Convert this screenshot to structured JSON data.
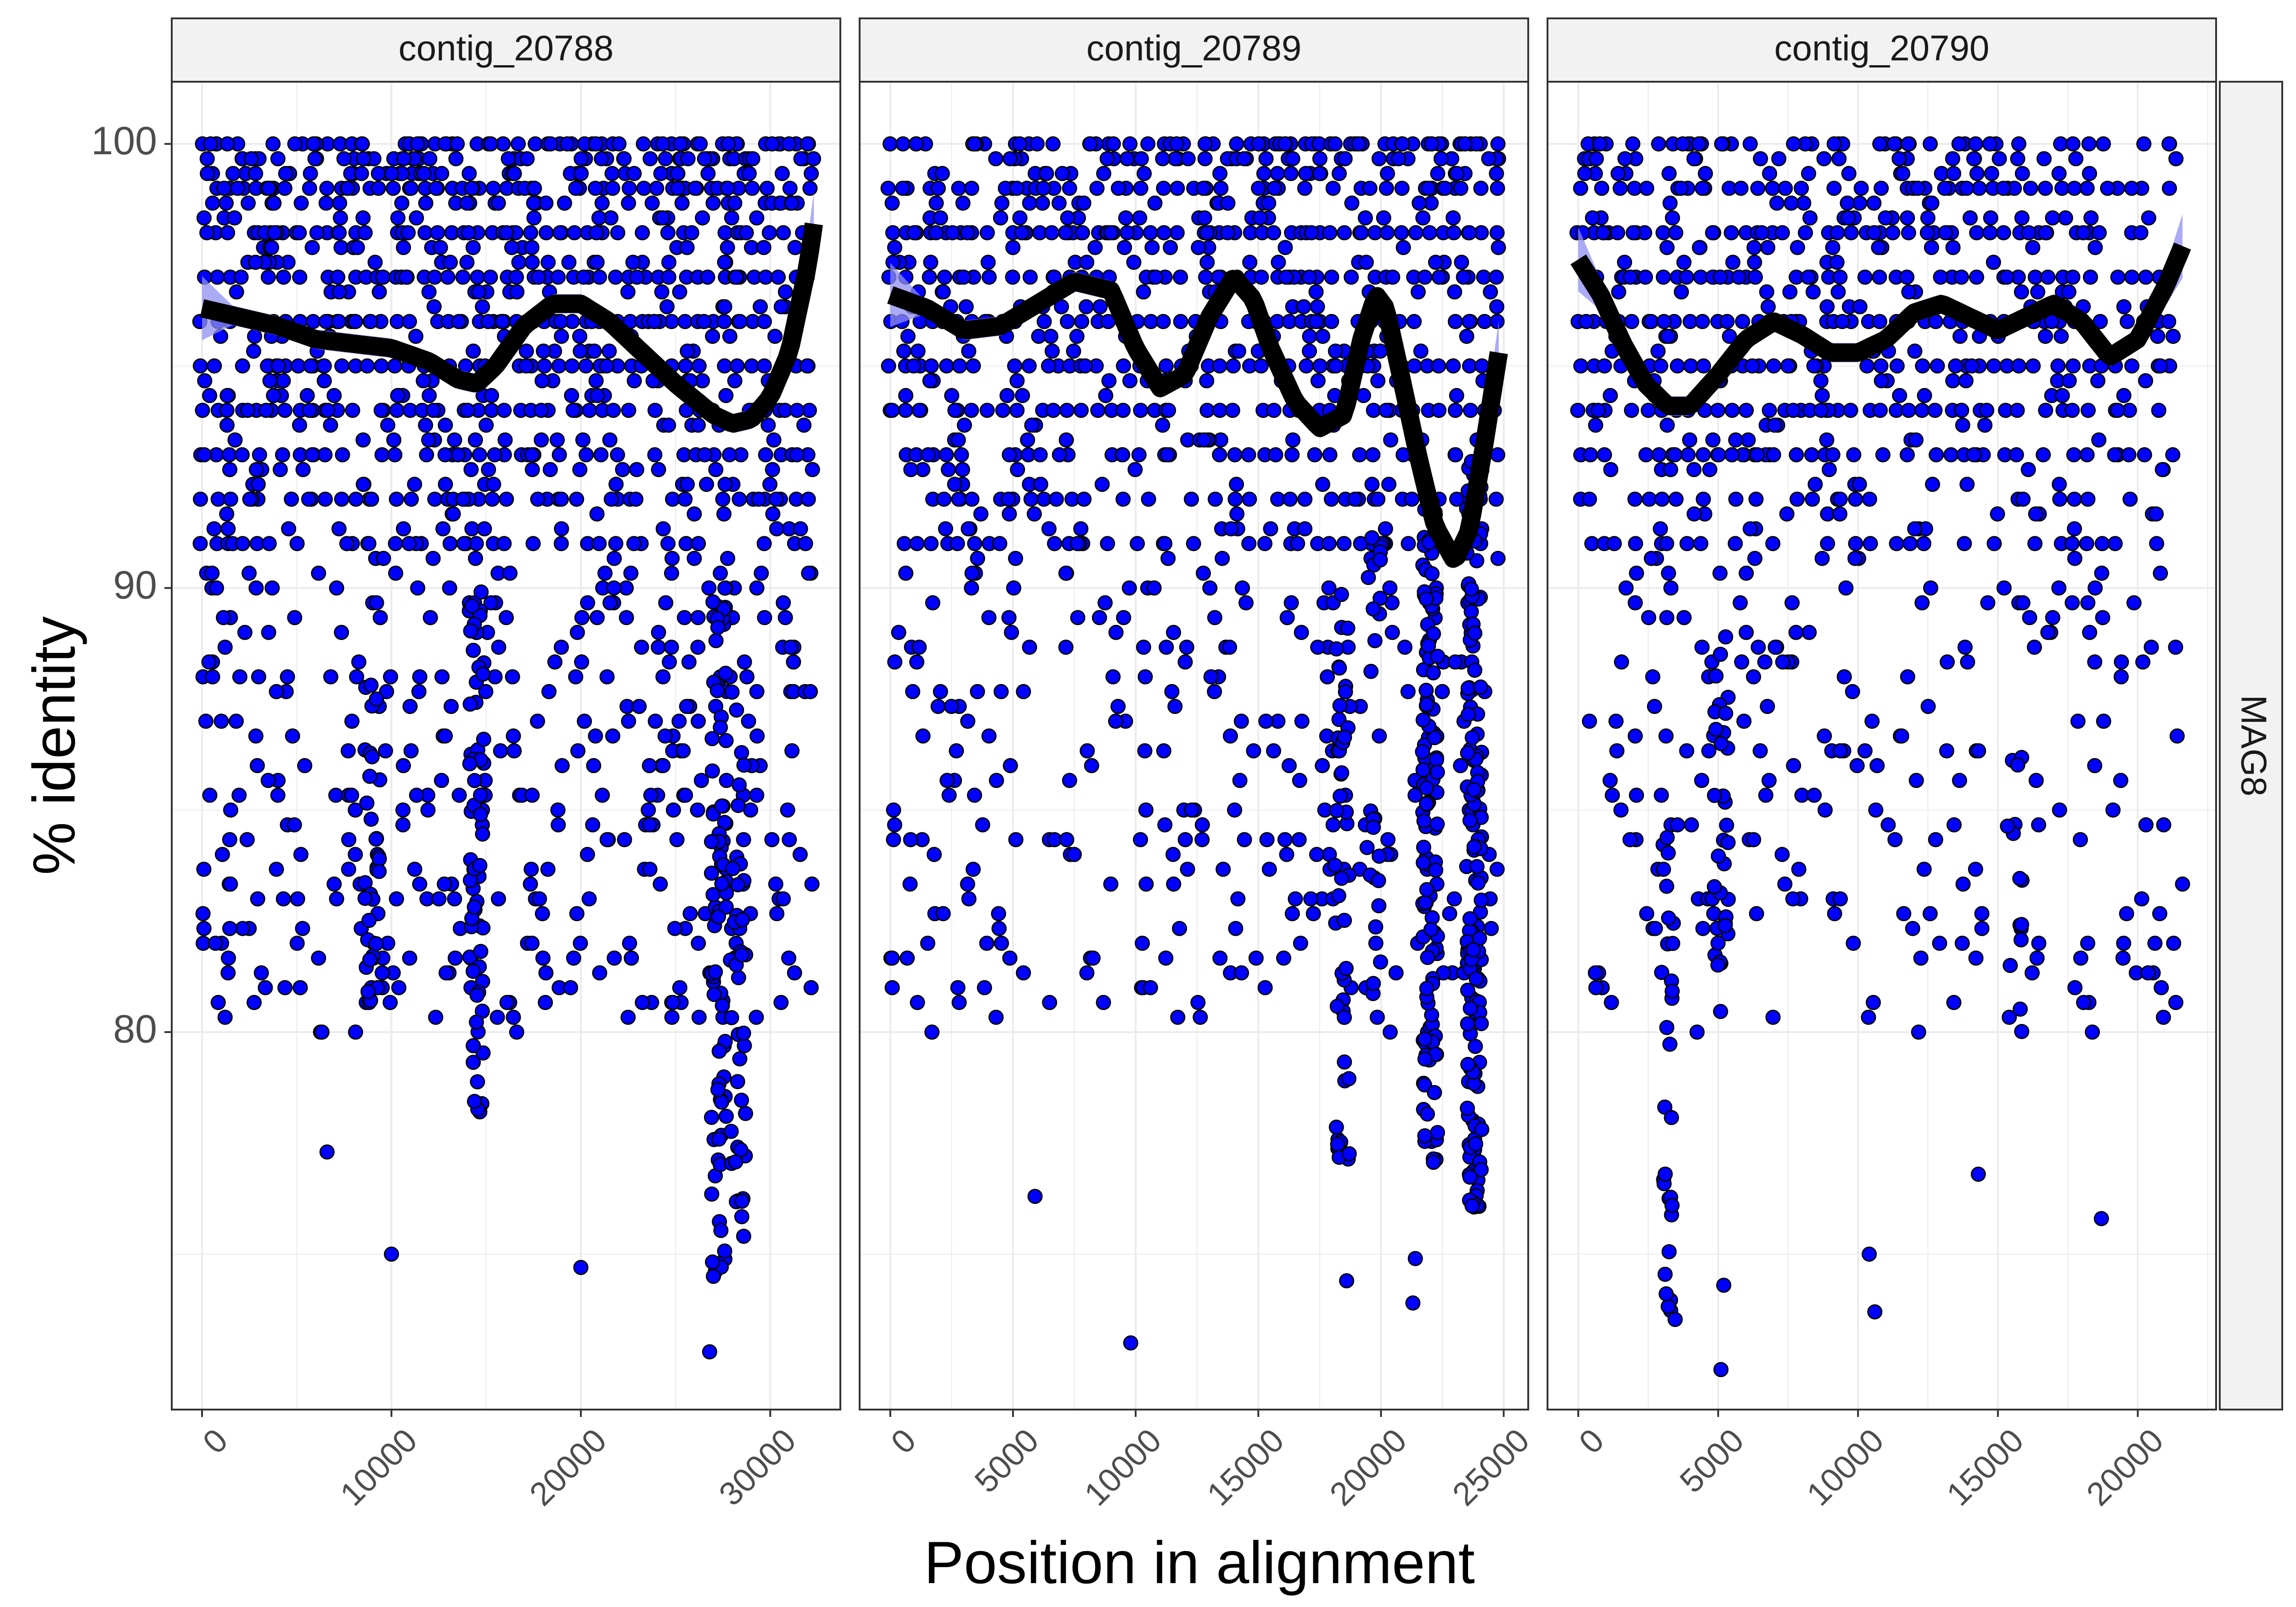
{
  "chart_data": {
    "type": "scatter",
    "xlabel": "Position in alignment",
    "ylabel": "% identity",
    "row_strip": "MAG8",
    "ylim": [
      71.5,
      101.4
    ],
    "yticks": [
      80,
      90,
      100
    ],
    "grid": true,
    "colors": {
      "points": "#0000ff",
      "point_outline": "#000000",
      "smooth": "#000000",
      "ribbon": "#8f8ff2",
      "strip_bg": "#f2f2f2",
      "grid": "#ebebeb"
    },
    "panels": [
      {
        "name": "contig_20788",
        "xlim": [
          -1600,
          33700
        ],
        "xticks": [
          0,
          10000,
          20000,
          30000
        ],
        "x_max": 32300,
        "smooth": {
          "x": [
            0,
            2000,
            4000,
            6000,
            8000,
            10000,
            12000,
            13500,
            14500,
            15500,
            17000,
            18500,
            20000,
            21500,
            23000,
            25000,
            27000,
            28000,
            29000,
            30000,
            31000,
            32000,
            32300
          ],
          "y": [
            96.3,
            96.1,
            95.9,
            95.6,
            95.5,
            95.4,
            95.1,
            94.7,
            94.6,
            95.0,
            95.9,
            96.4,
            96.4,
            96.0,
            95.4,
            94.6,
            93.9,
            93.7,
            93.8,
            94.3,
            95.3,
            97.3,
            98.2
          ]
        },
        "dense_levels": [
          {
            "y": 100,
            "p": 0.55
          },
          {
            "y": 99,
            "p": 0.7
          },
          {
            "y": 98,
            "p": 0.75
          },
          {
            "y": 97,
            "p": 0.85
          },
          {
            "y": 96,
            "p": 0.85
          },
          {
            "y": 95,
            "p": 0.85
          },
          {
            "y": 94,
            "p": 0.8
          },
          {
            "y": 93,
            "p": 0.7
          },
          {
            "y": 92,
            "p": 0.55
          },
          {
            "y": 91,
            "p": 0.45
          }
        ],
        "scatter_count": 900,
        "clusters": [
          {
            "x": 14500,
            "ymin": 78,
            "ymax": 90,
            "n": 60
          },
          {
            "x": 27300,
            "ymin": 74.5,
            "ymax": 90,
            "n": 80
          },
          {
            "x": 28300,
            "ymin": 75,
            "ymax": 88,
            "n": 40
          },
          {
            "x": 9000,
            "ymin": 79,
            "ymax": 88,
            "n": 30
          }
        ],
        "outliers": [
          [
            26800,
            72.8
          ],
          [
            10000,
            75
          ],
          [
            20000,
            74.7
          ],
          [
            27000,
            74.5
          ],
          [
            6600,
            77.3
          ]
        ]
      },
      {
        "name": "contig_20789",
        "xlim": [
          -1250,
          26000
        ],
        "xticks": [
          0,
          5000,
          10000,
          15000,
          20000,
          25000
        ],
        "x_max": 24800,
        "smooth": {
          "x": [
            0,
            1500,
            3000,
            4500,
            6000,
            7500,
            9000,
            10000,
            11000,
            12000,
            13000,
            14000,
            14800,
            15500,
            16500,
            17500,
            18500,
            19200,
            19800,
            20200,
            20800,
            21500,
            22200,
            23000,
            23600,
            24200,
            24800
          ],
          "y": [
            96.6,
            96.3,
            95.8,
            95.9,
            96.4,
            96.9,
            96.7,
            95.4,
            94.5,
            94.8,
            96.1,
            97.0,
            96.5,
            95.4,
            94.2,
            93.6,
            93.9,
            95.6,
            96.6,
            96.3,
            94.8,
            93.0,
            91.4,
            90.6,
            91.3,
            93.2,
            95.3
          ]
        },
        "gap": [
          17600,
          17900
        ],
        "dense_levels": [
          {
            "y": 100,
            "p": 0.6
          },
          {
            "y": 99,
            "p": 0.7
          },
          {
            "y": 98,
            "p": 0.8
          },
          {
            "y": 97,
            "p": 0.85
          },
          {
            "y": 96,
            "p": 0.85
          },
          {
            "y": 95,
            "p": 0.85
          },
          {
            "y": 94,
            "p": 0.8
          },
          {
            "y": 93,
            "p": 0.6
          },
          {
            "y": 92,
            "p": 0.5
          },
          {
            "y": 91,
            "p": 0.4
          }
        ],
        "scatter_count": 650,
        "clusters": [
          {
            "x": 18400,
            "ymin": 77,
            "ymax": 90,
            "n": 45
          },
          {
            "x": 22000,
            "ymin": 77,
            "ymax": 92,
            "n": 120
          },
          {
            "x": 23800,
            "ymin": 76,
            "ymax": 93,
            "n": 150
          },
          {
            "x": 19700,
            "ymin": 79,
            "ymax": 92,
            "n": 25
          }
        ],
        "outliers": [
          [
            9800,
            73
          ],
          [
            18600,
            74.4
          ],
          [
            21300,
            73.9
          ],
          [
            21400,
            74.9
          ],
          [
            5900,
            76.3
          ]
        ]
      },
      {
        "name": "contig_20790",
        "xlim": [
          -1100,
          22800
        ],
        "xticks": [
          0,
          5000,
          10000,
          15000,
          20000
        ],
        "x_max": 21600,
        "smooth": {
          "x": [
            0,
            800,
            1600,
            2400,
            3200,
            4000,
            5000,
            6000,
            7000,
            8000,
            9000,
            10000,
            11000,
            12000,
            13000,
            14000,
            15000,
            16000,
            17000,
            18000,
            19000,
            20000,
            21000,
            21600
          ],
          "y": [
            97.4,
            96.6,
            95.5,
            94.6,
            94.1,
            94.1,
            94.8,
            95.6,
            96.0,
            95.7,
            95.3,
            95.3,
            95.6,
            96.2,
            96.4,
            96.1,
            95.8,
            96.1,
            96.4,
            96.0,
            95.2,
            95.6,
            96.8,
            97.7
          ]
        },
        "dense_levels": [
          {
            "y": 100,
            "p": 0.5
          },
          {
            "y": 99,
            "p": 0.65
          },
          {
            "y": 98,
            "p": 0.75
          },
          {
            "y": 97,
            "p": 0.8
          },
          {
            "y": 96,
            "p": 0.8
          },
          {
            "y": 95,
            "p": 0.8
          },
          {
            "y": 94,
            "p": 0.75
          },
          {
            "y": 93,
            "p": 0.6
          },
          {
            "y": 92,
            "p": 0.5
          },
          {
            "y": 91,
            "p": 0.4
          }
        ],
        "scatter_count": 520,
        "clusters": [
          {
            "x": 3200,
            "ymin": 73.5,
            "ymax": 85,
            "n": 30
          },
          {
            "x": 5100,
            "ymin": 80,
            "ymax": 89,
            "n": 35
          },
          {
            "x": 15600,
            "ymin": 80,
            "ymax": 87,
            "n": 15
          }
        ],
        "outliers": [
          [
            5100,
            72.4
          ],
          [
            10600,
            73.7
          ],
          [
            5200,
            74.3
          ],
          [
            10400,
            75
          ],
          [
            14300,
            76.8
          ],
          [
            18700,
            75.8
          ]
        ]
      }
    ]
  }
}
